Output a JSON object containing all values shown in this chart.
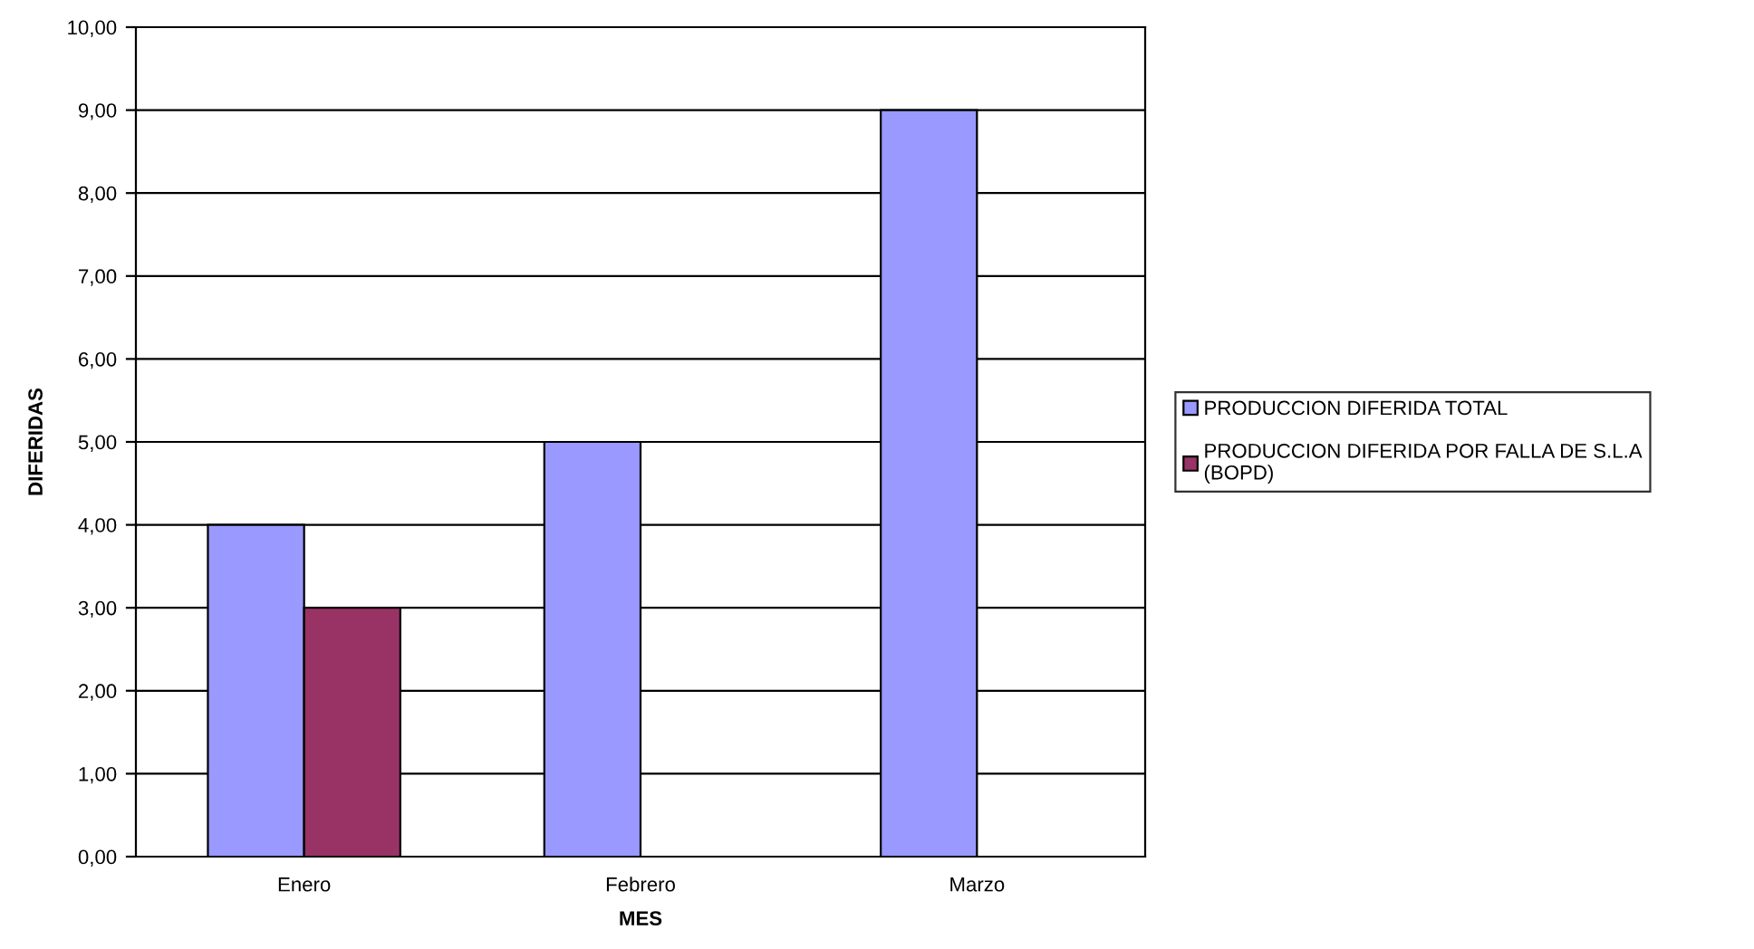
{
  "chart_data": {
    "type": "bar",
    "xlabel": "MES",
    "ylabel": "DIFERIDAS",
    "categories": [
      "Enero",
      "Febrero",
      "Marzo"
    ],
    "series": [
      {
        "name": "PRODUCCION DIFERIDA TOTAL",
        "color": "#9999ff",
        "values": [
          4,
          5,
          9
        ]
      },
      {
        "name": "PRODUCCION DIFERIDA POR FALLA DE S.L.A\n(BOPD)",
        "color": "#993366",
        "values": [
          3,
          null,
          null
        ]
      }
    ],
    "ylim": [
      0,
      10
    ],
    "yticks": [
      {
        "value": 0,
        "label": "0,00"
      },
      {
        "value": 1,
        "label": "1,00"
      },
      {
        "value": 2,
        "label": "2,00"
      },
      {
        "value": 3,
        "label": "3,00"
      },
      {
        "value": 4,
        "label": "4,00"
      },
      {
        "value": 5,
        "label": "5,00"
      },
      {
        "value": 6,
        "label": "6,00"
      },
      {
        "value": 7,
        "label": "7,00"
      },
      {
        "value": 8,
        "label": "8,00"
      },
      {
        "value": 9,
        "label": "9,00"
      },
      {
        "value": 10,
        "label": "10,00"
      }
    ],
    "grid": "y",
    "legend": "right"
  }
}
